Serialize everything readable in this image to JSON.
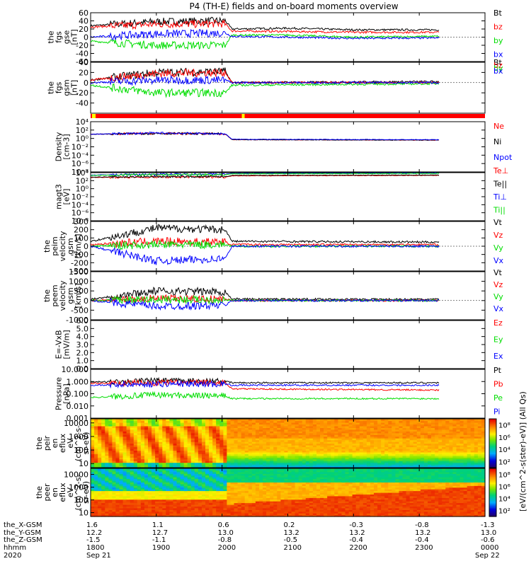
{
  "title": "P4 (TH-E) fields and on-board moments overview",
  "colors": {
    "black": "#000000",
    "red": "#ff0000",
    "green": "#00dd00",
    "blue": "#0000ff",
    "yellow": "#ffff00",
    "bar_red": "#ff0000"
  },
  "chart_data": [
    {
      "type": "line",
      "id": "fgs-gse",
      "ylabel": [
        "the",
        "fgs",
        "gse",
        "[nT]"
      ],
      "ylim": [
        -60,
        60
      ],
      "yscale": "linear",
      "yticks": [
        "60",
        "40",
        "20",
        "0",
        "-20",
        "-40",
        "-60"
      ],
      "ytick_values": [
        60,
        40,
        20,
        0,
        -20,
        -40,
        -60
      ],
      "series": [
        {
          "name": "Bt",
          "color": "#000000",
          "x_hours": [
            0,
            1,
            2.05,
            2.15,
            3,
            4,
            5.3
          ],
          "values": [
            28,
            38,
            40,
            20,
            22,
            18,
            18
          ]
        },
        {
          "name": "bz",
          "color": "#ff0000",
          "x_hours": [
            0,
            1,
            2.05,
            2.15,
            3,
            4,
            5.3
          ],
          "values": [
            25,
            32,
            33,
            15,
            14,
            12,
            12
          ]
        },
        {
          "name": "by",
          "color": "#00dd00",
          "x_hours": [
            0,
            1,
            2.05,
            2.15,
            3,
            4,
            5.3
          ],
          "values": [
            -10,
            -20,
            -20,
            5,
            5,
            0,
            2
          ]
        },
        {
          "name": "bx",
          "color": "#0000ff",
          "x_hours": [
            0,
            1,
            2.05,
            2.15,
            3,
            4,
            5.3
          ],
          "values": [
            0,
            8,
            10,
            2,
            0,
            -3,
            -2
          ]
        }
      ]
    },
    {
      "type": "line",
      "id": "fgs-gsm",
      "ylabel": [
        "the",
        "fgs",
        "gsm",
        "[nT]"
      ],
      "ylim": [
        -60,
        40
      ],
      "yscale": "linear",
      "yticks": [
        "40",
        "20",
        "0",
        "-20",
        "-40"
      ],
      "ytick_values": [
        40,
        20,
        0,
        -20,
        -40
      ],
      "series": [
        {
          "name": "Bt",
          "color": "#000000",
          "x_hours": [
            0,
            1,
            2.05,
            2.15,
            5.3
          ],
          "values": [
            5,
            20,
            22,
            0,
            2
          ]
        },
        {
          "name": "bz",
          "color": "#ff0000",
          "x_hours": [
            0,
            1,
            2.05,
            2.15,
            5.3
          ],
          "values": [
            5,
            18,
            20,
            0,
            0
          ]
        },
        {
          "name": "by",
          "color": "#00dd00",
          "x_hours": [
            0,
            1,
            2.05,
            2.15,
            5.3
          ],
          "values": [
            -5,
            -20,
            -20,
            -5,
            -2
          ]
        },
        {
          "name": "bx",
          "color": "#0000ff",
          "x_hours": [
            0,
            1,
            2.05,
            2.15,
            5.3
          ],
          "values": [
            0,
            5,
            5,
            0,
            0
          ]
        }
      ]
    },
    {
      "type": "line",
      "id": "density",
      "ylabel": [
        "Density",
        "[cm-3]"
      ],
      "ylim": [
        -8,
        4
      ],
      "yscale": "log",
      "yticks": [
        "10⁴",
        "10²",
        "10⁰",
        "10⁻²",
        "10⁻⁴",
        "10⁻⁶",
        "10⁻⁸"
      ],
      "ytick_values": [
        4,
        2,
        0,
        -2,
        -4,
        -6,
        -8
      ],
      "series": [
        {
          "name": "Ne",
          "color": "#ff0000",
          "x_hours": [
            0,
            1,
            2.05,
            2.15,
            5.3
          ],
          "values": [
            1.0,
            1.2,
            1.1,
            -0.3,
            -0.4
          ]
        },
        {
          "name": "Ni",
          "color": "#000000",
          "x_hours": [
            0,
            1,
            2.05,
            2.15,
            5.3
          ],
          "values": [
            1.0,
            1.2,
            1.1,
            -0.3,
            -0.4
          ]
        },
        {
          "name": "Npot",
          "color": "#0000ff",
          "x_hours": [
            0,
            1,
            2.05,
            2.15,
            5.3
          ],
          "values": [
            1.0,
            1.3,
            1.1,
            -0.2,
            -0.3
          ]
        }
      ]
    },
    {
      "type": "line",
      "id": "temperature",
      "ylabel": [
        "magt3",
        "[eV]"
      ],
      "ylim": [
        -8,
        4
      ],
      "yscale": "log",
      "yticks": [
        "10⁴",
        "10²",
        "10⁰",
        "10⁻²",
        "10⁻⁴",
        "10⁻⁶",
        "10⁻⁸"
      ],
      "ytick_values": [
        4,
        2,
        0,
        -2,
        -4,
        -6,
        -8
      ],
      "series": [
        {
          "name": "Te⊥",
          "color": "#ff0000",
          "x_hours": [
            0,
            1,
            2.05,
            2.15,
            5.3
          ],
          "values": [
            2.8,
            2.9,
            2.9,
            3.2,
            3.3
          ]
        },
        {
          "name": "Te||",
          "color": "#000000",
          "x_hours": [
            0,
            1,
            2.05,
            2.15,
            5.3
          ],
          "values": [
            2.9,
            3.0,
            3.0,
            3.3,
            3.4
          ]
        },
        {
          "name": "Ti⊥",
          "color": "#0000ff",
          "x_hours": [
            0,
            1,
            2.05,
            2.15,
            5.3
          ],
          "values": [
            3.4,
            3.6,
            3.6,
            3.8,
            3.9
          ]
        },
        {
          "name": "Ti||",
          "color": "#00dd00",
          "x_hours": [
            0,
            1,
            2.05,
            2.15,
            5.3
          ],
          "values": [
            3.3,
            3.5,
            3.5,
            3.7,
            3.8
          ]
        }
      ]
    },
    {
      "type": "line",
      "id": "peim-velocity",
      "ylabel": [
        "the",
        "peim",
        "velocity",
        "gsm",
        "[km/s]"
      ],
      "ylim": [
        -300,
        300
      ],
      "yscale": "linear",
      "yticks": [
        "300",
        "200",
        "100",
        "0",
        "-100",
        "-200",
        "-300"
      ],
      "ytick_values": [
        300,
        200,
        100,
        0,
        -100,
        -200,
        -300
      ],
      "series": [
        {
          "name": "Vt",
          "color": "#000000",
          "x_hours": [
            0,
            1,
            2.05,
            2.15,
            5.3
          ],
          "values": [
            60,
            220,
            200,
            60,
            50
          ]
        },
        {
          "name": "Vz",
          "color": "#ff0000",
          "x_hours": [
            0,
            1,
            2.05,
            2.15,
            5.3
          ],
          "values": [
            20,
            60,
            50,
            20,
            20
          ]
        },
        {
          "name": "Vy",
          "color": "#00dd00",
          "x_hours": [
            0,
            1,
            2.05,
            2.15,
            5.3
          ],
          "values": [
            0,
            20,
            20,
            0,
            0
          ]
        },
        {
          "name": "Vx",
          "color": "#0000ff",
          "x_hours": [
            0,
            1,
            2.05,
            2.15,
            5.3
          ],
          "values": [
            0,
            -180,
            -150,
            0,
            0
          ]
        }
      ]
    },
    {
      "type": "line",
      "id": "peem-velocity",
      "ylabel": [
        "the",
        "peem",
        "velocity",
        "gsm",
        "[km/s]"
      ],
      "ylim": [
        -1000,
        1500
      ],
      "yscale": "linear",
      "yticks": [
        "1500",
        "1000",
        "500",
        "0",
        "-500",
        "-1000"
      ],
      "ytick_values": [
        1500,
        1000,
        500,
        0,
        -500,
        -1000
      ],
      "series": [
        {
          "name": "Vt",
          "color": "#000000",
          "x_hours": [
            0,
            1,
            2.05,
            2.15,
            5.3
          ],
          "values": [
            80,
            500,
            450,
            80,
            60
          ]
        },
        {
          "name": "Vz",
          "color": "#ff0000",
          "x_hours": [
            0,
            1,
            2.05,
            2.15,
            5.3
          ],
          "values": [
            0,
            100,
            80,
            0,
            0
          ]
        },
        {
          "name": "Vy",
          "color": "#00dd00",
          "x_hours": [
            0,
            1,
            2.05,
            2.15,
            5.3
          ],
          "values": [
            0,
            50,
            40,
            0,
            0
          ]
        },
        {
          "name": "Vx",
          "color": "#0000ff",
          "x_hours": [
            0,
            1,
            2.05,
            2.15,
            5.3
          ],
          "values": [
            0,
            -300,
            -250,
            0,
            0
          ]
        }
      ]
    },
    {
      "type": "line",
      "id": "efield",
      "ylabel": [
        "E=-VxB",
        "[mV/m]"
      ],
      "ylim": [
        0,
        6
      ],
      "yscale": "linear",
      "yticks": [
        "6.0",
        "5.0",
        "4.0",
        "3.0",
        "2.0",
        "1.0",
        "0.0"
      ],
      "ytick_values": [
        6,
        5,
        4,
        3,
        2,
        1,
        0
      ],
      "series": [
        {
          "name": "Ez",
          "color": "#ff0000",
          "x_hours": [],
          "values": []
        },
        {
          "name": "Ey",
          "color": "#00dd00",
          "x_hours": [],
          "values": []
        },
        {
          "name": "Ex",
          "color": "#0000ff",
          "x_hours": [],
          "values": []
        }
      ]
    },
    {
      "type": "line",
      "id": "pressure",
      "ylabel": [
        "Pressure",
        "[nPa]"
      ],
      "ylim": [
        -3,
        1
      ],
      "yscale": "log",
      "yticks": [
        "10.000",
        "1.000",
        "0.100",
        "0.010",
        "0.001"
      ],
      "ytick_values": [
        1,
        0,
        -1,
        -2,
        -3
      ],
      "series": [
        {
          "name": "Pt",
          "color": "#000000",
          "x_hours": [
            0,
            1,
            2.05,
            2.15,
            5.3
          ],
          "values": [
            -0.05,
            0.05,
            0.0,
            -0.1,
            -0.1
          ]
        },
        {
          "name": "Pb",
          "color": "#ff0000",
          "x_hours": [
            0,
            1,
            2.05,
            2.15,
            5.3
          ],
          "values": [
            -0.15,
            -0.1,
            -0.1,
            -0.6,
            -0.7
          ]
        },
        {
          "name": "Pe",
          "color": "#00dd00",
          "x_hours": [
            0,
            1,
            2.05,
            2.15,
            5.3
          ],
          "values": [
            -1.3,
            -1.1,
            -1.2,
            -1.4,
            -1.4
          ]
        },
        {
          "name": "Pi",
          "color": "#0000ff",
          "x_hours": [
            0,
            1,
            2.05,
            2.15,
            5.3
          ],
          "values": [
            -0.3,
            -0.2,
            -0.2,
            -0.3,
            -0.3
          ]
        }
      ]
    },
    {
      "type": "heatmap",
      "id": "peir-en-eflux",
      "ylabel": [
        "the",
        "peir",
        "en",
        "eflux",
        "eV",
        "(cm^2-s-",
        "sr-eV)"
      ],
      "ylim": [
        5,
        20000
      ],
      "yscale": "log",
      "yticks": [
        "10000",
        "1000",
        "100",
        "10"
      ],
      "ytick_values": [
        10000,
        1000,
        100,
        10
      ],
      "colorbar_ticks": [
        "10⁸",
        "10⁶",
        "10⁴",
        "10²"
      ],
      "colorbar_values": [
        8,
        6,
        4,
        2
      ]
    },
    {
      "type": "heatmap",
      "id": "peer-en-eflux",
      "ylabel": [
        "the",
        "peer",
        "en",
        "eflux",
        "eV",
        "(cm^2-s-",
        "sr-eV)"
      ],
      "ylim": [
        5,
        30000
      ],
      "yscale": "log",
      "yticks": [
        "10000",
        "1000",
        "100",
        "10"
      ],
      "ytick_values": [
        10000,
        1000,
        100,
        10
      ],
      "colorbar_ticks": [
        "10⁸",
        "10⁶",
        "10⁴",
        "10²"
      ],
      "colorbar_values": [
        8,
        6,
        4,
        2
      ],
      "colorbar_label": "[eV/(cm^2-s(ster)-eV)] (All Qs)"
    }
  ],
  "x_axis": {
    "range_hours": [
      0,
      6
    ],
    "tick_hours": [
      0,
      1,
      2,
      3,
      4,
      5,
      6
    ],
    "row_labels": [
      "the_X-GSM",
      "the_Y-GSM",
      "the_Z-GSM",
      "hhmm",
      "2020"
    ],
    "rows": [
      [
        "1.6",
        "1.1",
        "0.6",
        "0.2",
        "-0.3",
        "-0.8",
        "-1.3"
      ],
      [
        "12.2",
        "12.7",
        "13.0",
        "13.2",
        "13.2",
        "13.2",
        "13.0"
      ],
      [
        "-1.5",
        "-1.1",
        "-0.8",
        "-0.5",
        "-0.4",
        "-0.4",
        "-0.6"
      ],
      [
        "1800",
        "1900",
        "2000",
        "2100",
        "2200",
        "2300",
        "0000"
      ]
    ],
    "date_start": "Sep 21",
    "date_end": "Sep 22"
  }
}
